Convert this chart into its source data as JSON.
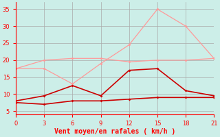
{
  "x": [
    0,
    3,
    6,
    9,
    12,
    15,
    18,
    21
  ],
  "line1_y": [
    7.5,
    7.0,
    8.0,
    8.0,
    8.5,
    9.0,
    9.0,
    9.0
  ],
  "line2_y": [
    8.0,
    9.5,
    12.5,
    9.5,
    17.0,
    17.5,
    11.0,
    9.5
  ],
  "line3_y": [
    17.5,
    17.5,
    13.0,
    19.0,
    24.5,
    35.0,
    30.0,
    20.5
  ],
  "line4_y": [
    17.5,
    20.0,
    20.5,
    20.5,
    19.5,
    20.0,
    20.0,
    20.5
  ],
  "color_dark": "#cc0000",
  "color_light": "#ff9999",
  "bg_color": "#cceee8",
  "grid_color": "#aaaaaa",
  "xlabel": "Vent moyen/en rafales ( km/h )",
  "xlim": [
    0,
    21
  ],
  "ylim": [
    4,
    37
  ],
  "yticks": [
    5,
    10,
    15,
    20,
    25,
    30,
    35
  ],
  "xticks": [
    0,
    3,
    6,
    9,
    12,
    15,
    18,
    21
  ],
  "xlabel_color": "#ff0000",
  "tick_color": "#ff0000",
  "spine_color": "#888888"
}
